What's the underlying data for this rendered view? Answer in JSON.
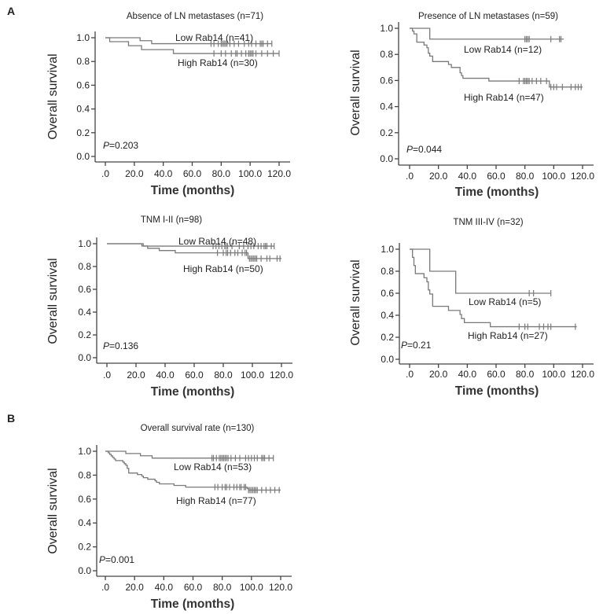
{
  "panel_labels": {
    "A": "A",
    "B": "B"
  },
  "colors": {
    "curve": "#7a7a7a",
    "axis": "#444444",
    "text": "#222222"
  },
  "chart_data": [
    {
      "type": "line",
      "subtype": "kaplan-meier",
      "title": "Absence of LN metastases (n=71)",
      "xlabel": "Time (months)",
      "ylabel": "Overall survival",
      "xlim": [
        0,
        120
      ],
      "ylim": [
        0,
        1
      ],
      "x_ticks": [
        ".0",
        "20.0",
        "40.0",
        "60.0",
        "80.0",
        "100.0",
        "120.0"
      ],
      "y_ticks": [
        "0.0",
        "0.2",
        "0.4",
        "0.6",
        "0.8",
        "1.0"
      ],
      "p_prefix": "P",
      "p_value": "=0.203",
      "series": [
        {
          "name": "Low Rab14 (n=41)",
          "steps": [
            [
              0,
              1.0
            ],
            [
              24,
              0.975
            ],
            [
              32,
              0.95
            ]
          ],
          "end": 115,
          "censored": [
            73,
            75,
            78,
            80,
            81,
            82,
            83,
            84,
            86,
            89,
            92,
            96,
            99,
            101,
            104,
            107,
            108,
            109,
            112,
            115
          ]
        },
        {
          "name": "High Rab14 (n=30)",
          "steps": [
            [
              0,
              1.0
            ],
            [
              3,
              0.967
            ],
            [
              16,
              0.933
            ],
            [
              25,
              0.9
            ],
            [
              47,
              0.867
            ]
          ],
          "end": 120,
          "censored": [
            75,
            80,
            83,
            87,
            90,
            91,
            94,
            97,
            99,
            100,
            101,
            102,
            104,
            108,
            112,
            116,
            120
          ]
        }
      ]
    },
    {
      "type": "line",
      "subtype": "kaplan-meier",
      "title": "Presence of LN metastases (n=59)",
      "xlabel": "Time (months)",
      "ylabel": "Overall survival",
      "xlim": [
        0,
        120
      ],
      "ylim": [
        0,
        1
      ],
      "x_ticks": [
        ".0",
        "20.0",
        "40.0",
        "60.0",
        "80.0",
        "100.0",
        "120.0"
      ],
      "y_ticks": [
        "0.0",
        "0.2",
        "0.4",
        "0.6",
        "0.8",
        "1.0"
      ],
      "p_prefix": "P",
      "p_value": "=0.044",
      "series": [
        {
          "name": "Low Rab14 (n=12)",
          "steps": [
            [
              0,
              1.0
            ],
            [
              14,
              0.917
            ]
          ],
          "end": 107,
          "censored": [
            80,
            81,
            82,
            83,
            98,
            104,
            105
          ]
        },
        {
          "name": "High Rab14 (n=47)",
          "steps": [
            [
              0,
              1.0
            ],
            [
              2,
              0.979
            ],
            [
              3,
              0.957
            ],
            [
              5,
              0.894
            ],
            [
              10,
              0.872
            ],
            [
              12,
              0.851
            ],
            [
              13,
              0.809
            ],
            [
              14,
              0.787
            ],
            [
              16,
              0.745
            ],
            [
              27,
              0.723
            ],
            [
              29,
              0.7
            ],
            [
              35,
              0.659
            ],
            [
              36,
              0.638
            ],
            [
              37,
              0.617
            ],
            [
              55,
              0.596
            ],
            [
              97,
              0.55
            ]
          ],
          "end": 120,
          "censored": [
            76,
            79,
            80,
            81,
            82,
            83,
            85,
            88,
            91,
            95,
            98,
            100,
            102,
            106,
            112,
            115,
            117,
            119
          ]
        }
      ]
    },
    {
      "type": "line",
      "subtype": "kaplan-meier",
      "title": "TNM I-II (n=98)",
      "xlabel": "Time (months)",
      "ylabel": "Overall survival",
      "xlim": [
        0,
        120
      ],
      "ylim": [
        0,
        1
      ],
      "x_ticks": [
        ".0",
        "20.0",
        "40.0",
        "60.0",
        "80.0",
        "100.0",
        "120.0"
      ],
      "y_ticks": [
        "0.0",
        "0.2",
        "0.4",
        "0.6",
        "0.8",
        "1.0"
      ],
      "p_prefix": "P",
      "p_value": "=0.136",
      "series": [
        {
          "name": "Low Rab14 (n=48)",
          "steps": [
            [
              0,
              1.0
            ],
            [
              25,
              0.979
            ]
          ],
          "end": 115,
          "censored": [
            73,
            75,
            77,
            79,
            81,
            82,
            83,
            86,
            91,
            94,
            97,
            99,
            101,
            104,
            106,
            108,
            109,
            110,
            113,
            115
          ]
        },
        {
          "name": "High Rab14 (n=50)",
          "steps": [
            [
              0,
              1.0
            ],
            [
              24,
              0.98
            ],
            [
              28,
              0.96
            ],
            [
              36,
              0.94
            ],
            [
              47,
              0.92
            ],
            [
              97,
              0.87
            ]
          ],
          "end": 120,
          "censored": [
            76,
            80,
            82,
            83,
            85,
            88,
            90,
            93,
            95,
            96,
            98,
            99,
            100,
            101,
            102,
            103,
            106,
            110,
            112,
            117,
            119
          ]
        }
      ]
    },
    {
      "type": "line",
      "subtype": "kaplan-meier",
      "title": "TNM III-IV (n=32)",
      "xlabel": "Time (months)",
      "ylabel": "Overall survival",
      "xlim": [
        0,
        120
      ],
      "ylim": [
        0,
        1
      ],
      "x_ticks": [
        ".0",
        "20.0",
        "40.0",
        "60.0",
        "80.0",
        "100.0",
        "120.0"
      ],
      "y_ticks": [
        "0.0",
        "0.2",
        "0.4",
        "0.6",
        "0.8",
        "1.0"
      ],
      "p_prefix": "P",
      "p_value": "=0.21",
      "series": [
        {
          "name": "Low Rab14 (n=5)",
          "steps": [
            [
              0,
              1.0
            ],
            [
              14,
              0.8
            ],
            [
              32,
              0.6
            ]
          ],
          "end": 98,
          "censored": [
            83,
            86,
            98
          ]
        },
        {
          "name": "High Rab14 (n=27)",
          "steps": [
            [
              0,
              1.0
            ],
            [
              2,
              0.926
            ],
            [
              3,
              0.852
            ],
            [
              4,
              0.778
            ],
            [
              10,
              0.741
            ],
            [
              12,
              0.704
            ],
            [
              13,
              0.63
            ],
            [
              14,
              0.593
            ],
            [
              16,
              0.481
            ],
            [
              27,
              0.444
            ],
            [
              35,
              0.407
            ],
            [
              36,
              0.37
            ],
            [
              38,
              0.333
            ],
            [
              56,
              0.296
            ]
          ],
          "end": 116,
          "censored": [
            76,
            80,
            82,
            90,
            93,
            96,
            98,
            115
          ]
        }
      ]
    },
    {
      "type": "line",
      "subtype": "kaplan-meier",
      "title": "Overall survival rate (n=130)",
      "xlabel": "Time (months)",
      "ylabel": "Overall survival",
      "xlim": [
        0,
        120
      ],
      "ylim": [
        0,
        1
      ],
      "x_ticks": [
        ".0",
        "20.0",
        "40.0",
        "60.0",
        "80.0",
        "100.0",
        "120.0"
      ],
      "y_ticks": [
        "0.0",
        "0.2",
        "0.4",
        "0.6",
        "0.8",
        "1.0"
      ],
      "p_prefix": "P",
      "p_value": "=0.001",
      "series": [
        {
          "name": "Low Rab14 (n=53)",
          "steps": [
            [
              0,
              1.0
            ],
            [
              14,
              0.981
            ],
            [
              24,
              0.962
            ],
            [
              32,
              0.943
            ]
          ],
          "end": 115,
          "censored": [
            73,
            74,
            76,
            78,
            79,
            80,
            81,
            82,
            83,
            84,
            86,
            89,
            92,
            96,
            98,
            100,
            102,
            104,
            107,
            108,
            109,
            112,
            115
          ]
        },
        {
          "name": "High Rab14 (n=77)",
          "steps": [
            [
              0,
              1.0
            ],
            [
              2,
              0.987
            ],
            [
              3,
              0.974
            ],
            [
              4,
              0.961
            ],
            [
              5,
              0.948
            ],
            [
              6,
              0.935
            ],
            [
              7,
              0.922
            ],
            [
              12,
              0.909
            ],
            [
              13,
              0.896
            ],
            [
              14,
              0.883
            ],
            [
              15,
              0.857
            ],
            [
              16,
              0.818
            ],
            [
              22,
              0.805
            ],
            [
              25,
              0.792
            ],
            [
              26,
              0.779
            ],
            [
              29,
              0.766
            ],
            [
              34,
              0.753
            ],
            [
              35,
              0.74
            ],
            [
              37,
              0.727
            ],
            [
              47,
              0.714
            ],
            [
              55,
              0.7
            ],
            [
              97,
              0.688
            ],
            [
              98,
              0.675
            ]
          ],
          "end": 120,
          "censored": [
            75,
            77,
            80,
            82,
            83,
            85,
            88,
            90,
            92,
            93,
            95,
            96,
            98,
            99,
            100,
            101,
            102,
            103,
            104,
            107,
            110,
            113,
            116,
            119
          ]
        }
      ]
    }
  ]
}
